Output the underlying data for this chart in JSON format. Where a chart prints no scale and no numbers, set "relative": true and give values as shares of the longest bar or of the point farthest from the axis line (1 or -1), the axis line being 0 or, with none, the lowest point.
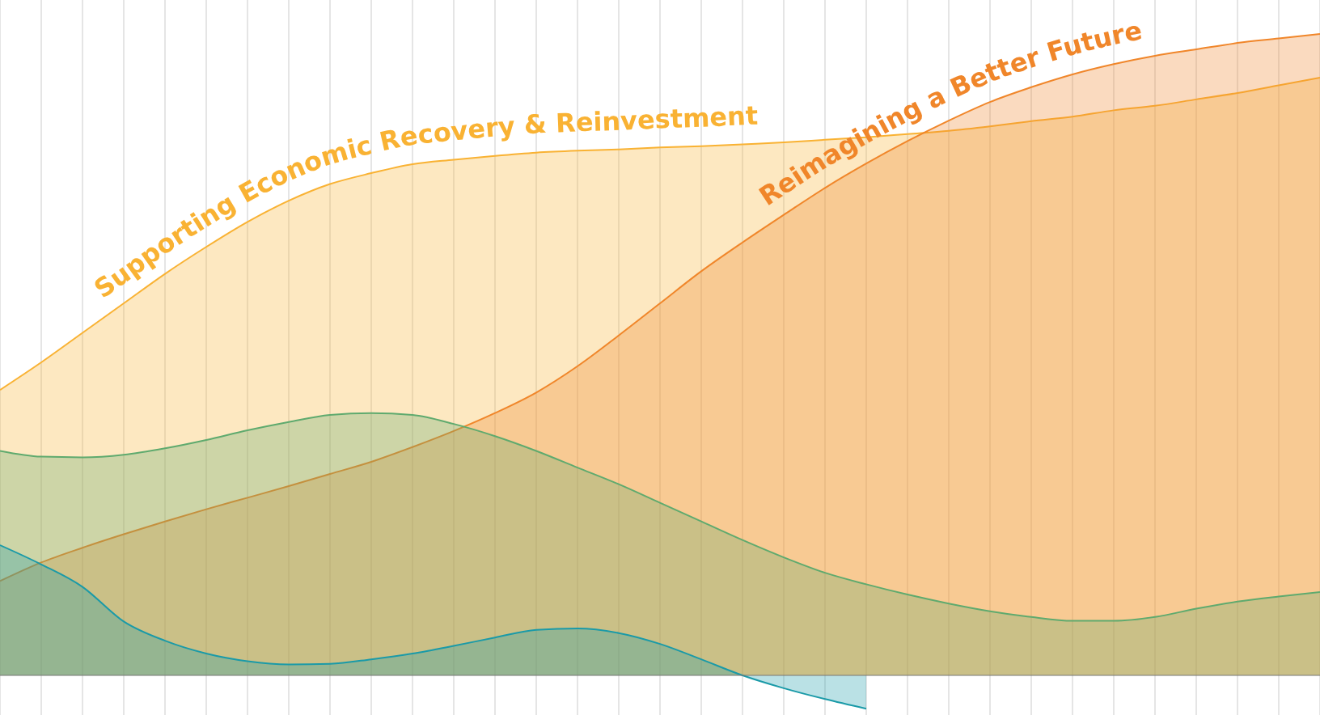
{
  "chart_data": {
    "type": "area",
    "relative": true,
    "grid": "x",
    "categories": [
      null,
      null,
      null,
      null,
      null,
      null,
      null,
      null,
      null,
      null,
      null,
      null,
      null,
      null,
      null,
      null,
      null,
      null,
      null,
      null,
      null,
      null,
      null,
      null,
      null,
      null,
      null,
      null,
      null,
      null,
      null,
      null,
      null
    ],
    "series": [
      {
        "name": "Supporting Economic Recovery & Reinvestment",
        "color": "#f9b233",
        "values": [
          0.445,
          0.488,
          0.534,
          0.58,
          0.626,
          0.668,
          0.707,
          0.74,
          0.766,
          0.783,
          0.797,
          0.804,
          0.81,
          0.815,
          0.818,
          0.82,
          0.823,
          0.825,
          0.828,
          0.831,
          0.835,
          0.839,
          0.844,
          0.849,
          0.856,
          0.864,
          0.871,
          0.881,
          0.888,
          0.898,
          0.908,
          0.92,
          0.932
        ]
      },
      {
        "name": "Reimagining a Better Future",
        "color": "#f0862a",
        "values": [
          0.147,
          0.176,
          0.199,
          0.22,
          0.24,
          0.259,
          0.277,
          0.295,
          0.314,
          0.333,
          0.356,
          0.381,
          0.409,
          0.441,
          0.482,
          0.53,
          0.58,
          0.63,
          0.675,
          0.718,
          0.76,
          0.798,
          0.833,
          0.865,
          0.894,
          0.917,
          0.937,
          0.953,
          0.966,
          0.976,
          0.986,
          0.993,
          1
        ]
      },
      {
        "color": "#5faa6e",
        "values": [
          0.35,
          0.341,
          0.34,
          0.344,
          0.354,
          0.367,
          0.382,
          0.395,
          0.406,
          0.409,
          0.406,
          0.392,
          0.373,
          0.35,
          0.324,
          0.298,
          0.269,
          0.24,
          0.211,
          0.184,
          0.16,
          0.142,
          0.126,
          0.112,
          0.1,
          0.091,
          0.085,
          0.085,
          0.091,
          0.104,
          0.115,
          0.123,
          0.13
        ]
      },
      {
        "color": "#1a9aa8",
        "values": [
          0.203,
          0.173,
          0.138,
          0.084,
          0.054,
          0.034,
          0.022,
          0.017,
          0.018,
          0.025,
          0.034,
          0.046,
          0.059,
          0.071,
          0.073,
          0.066,
          0.049,
          0.025,
          0,
          -0.02,
          -0.037,
          -0.052,
          null,
          null,
          null,
          null,
          null,
          null,
          null,
          null,
          null,
          null,
          null
        ]
      }
    ]
  }
}
